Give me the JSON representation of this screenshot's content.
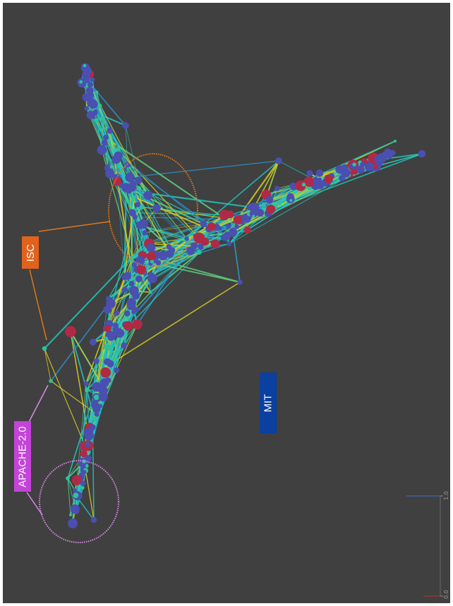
{
  "labels": {
    "isc": "ISC",
    "apache": "APACHE-2.0",
    "mit": "MIT"
  },
  "colorbar": {
    "tick_max": "1.0",
    "tick_min": "0.0"
  },
  "colors": {
    "background": "#404040",
    "frame": "#ffffff",
    "node_blue": "#4a4fb0",
    "node_red": "#b02a45",
    "node_teal": "#2fc0a0",
    "edge_cyan": "#20c8c0",
    "edge_blue": "#2a90c8",
    "edge_green": "#60d080",
    "edge_yellow": "#d8d020",
    "isc_accent": "#e0621c",
    "apache_accent": "#c443d8",
    "mit_accent": "#0b3fa0"
  }
}
